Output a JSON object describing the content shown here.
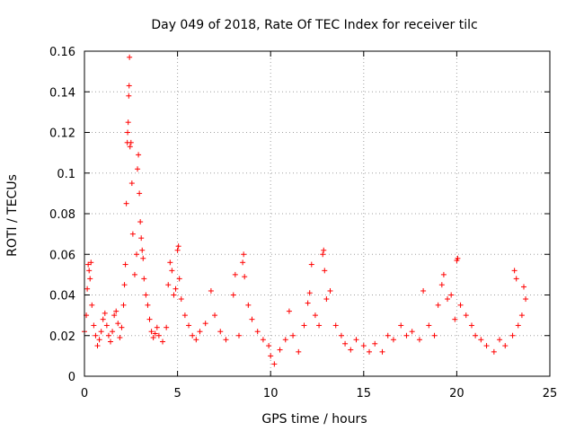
{
  "chart_data": {
    "type": "scatter",
    "title": "Day 049 of 2018, Rate Of TEC Index for receiver tilc",
    "xlabel": "GPS time / hours",
    "ylabel": "ROTI / TECUs",
    "xlim": [
      0,
      25
    ],
    "ylim": [
      0,
      0.16
    ],
    "xticks": [
      0,
      5,
      10,
      15,
      20,
      25
    ],
    "xtick_labels": [
      "0",
      "5",
      "10",
      "15",
      "20",
      "25"
    ],
    "yticks": [
      0,
      0.02,
      0.04,
      0.06,
      0.08,
      0.1,
      0.12,
      0.14,
      0.16
    ],
    "ytick_labels": [
      "0",
      "0.02",
      "0.04",
      "0.06",
      "0.08",
      "0.1",
      "0.12",
      "0.14",
      "0.16"
    ],
    "grid": true,
    "marker": "plus",
    "color": "#ff0000",
    "series": [
      {
        "name": "ROTI",
        "points": [
          [
            0.0,
            0.022
          ],
          [
            0.1,
            0.03
          ],
          [
            0.15,
            0.043
          ],
          [
            0.2,
            0.055
          ],
          [
            0.25,
            0.052
          ],
          [
            0.3,
            0.048
          ],
          [
            0.35,
            0.056
          ],
          [
            0.4,
            0.035
          ],
          [
            0.5,
            0.025
          ],
          [
            0.6,
            0.02
          ],
          [
            0.7,
            0.015
          ],
          [
            0.8,
            0.018
          ],
          [
            0.9,
            0.022
          ],
          [
            1.0,
            0.028
          ],
          [
            1.1,
            0.031
          ],
          [
            1.2,
            0.025
          ],
          [
            1.3,
            0.02
          ],
          [
            1.4,
            0.017
          ],
          [
            1.5,
            0.022
          ],
          [
            1.6,
            0.03
          ],
          [
            1.7,
            0.032
          ],
          [
            1.8,
            0.026
          ],
          [
            1.9,
            0.019
          ],
          [
            2.0,
            0.024
          ],
          [
            2.1,
            0.035
          ],
          [
            2.15,
            0.045
          ],
          [
            2.2,
            0.055
          ],
          [
            2.25,
            0.085
          ],
          [
            2.3,
            0.115
          ],
          [
            2.32,
            0.12
          ],
          [
            2.35,
            0.125
          ],
          [
            2.38,
            0.138
          ],
          [
            2.4,
            0.143
          ],
          [
            2.42,
            0.157
          ],
          [
            2.45,
            0.113
          ],
          [
            2.5,
            0.115
          ],
          [
            2.55,
            0.095
          ],
          [
            2.6,
            0.07
          ],
          [
            2.7,
            0.05
          ],
          [
            2.8,
            0.06
          ],
          [
            2.85,
            0.102
          ],
          [
            2.9,
            0.109
          ],
          [
            2.95,
            0.09
          ],
          [
            3.0,
            0.076
          ],
          [
            3.05,
            0.068
          ],
          [
            3.1,
            0.062
          ],
          [
            3.15,
            0.058
          ],
          [
            3.2,
            0.048
          ],
          [
            3.3,
            0.04
          ],
          [
            3.4,
            0.035
          ],
          [
            3.5,
            0.028
          ],
          [
            3.6,
            0.022
          ],
          [
            3.7,
            0.019
          ],
          [
            3.8,
            0.021
          ],
          [
            3.9,
            0.024
          ],
          [
            4.0,
            0.02
          ],
          [
            4.2,
            0.017
          ],
          [
            4.4,
            0.024
          ],
          [
            4.5,
            0.045
          ],
          [
            4.6,
            0.056
          ],
          [
            4.7,
            0.052
          ],
          [
            4.8,
            0.04
          ],
          [
            4.9,
            0.043
          ],
          [
            5.0,
            0.062
          ],
          [
            5.05,
            0.064
          ],
          [
            5.1,
            0.048
          ],
          [
            5.2,
            0.038
          ],
          [
            5.4,
            0.03
          ],
          [
            5.6,
            0.025
          ],
          [
            5.8,
            0.02
          ],
          [
            6.0,
            0.018
          ],
          [
            6.2,
            0.022
          ],
          [
            6.5,
            0.026
          ],
          [
            6.8,
            0.042
          ],
          [
            7.0,
            0.03
          ],
          [
            7.3,
            0.022
          ],
          [
            7.6,
            0.018
          ],
          [
            8.0,
            0.04
          ],
          [
            8.1,
            0.05
          ],
          [
            8.3,
            0.02
          ],
          [
            8.5,
            0.056
          ],
          [
            8.55,
            0.06
          ],
          [
            8.6,
            0.049
          ],
          [
            8.8,
            0.035
          ],
          [
            9.0,
            0.028
          ],
          [
            9.3,
            0.022
          ],
          [
            9.6,
            0.018
          ],
          [
            9.9,
            0.015
          ],
          [
            10.0,
            0.01
          ],
          [
            10.2,
            0.006
          ],
          [
            10.5,
            0.013
          ],
          [
            10.8,
            0.018
          ],
          [
            11.0,
            0.032
          ],
          [
            11.2,
            0.02
          ],
          [
            11.5,
            0.012
          ],
          [
            11.8,
            0.025
          ],
          [
            12.0,
            0.036
          ],
          [
            12.1,
            0.041
          ],
          [
            12.2,
            0.055
          ],
          [
            12.4,
            0.03
          ],
          [
            12.6,
            0.025
          ],
          [
            12.8,
            0.06
          ],
          [
            12.85,
            0.062
          ],
          [
            12.9,
            0.052
          ],
          [
            13.0,
            0.038
          ],
          [
            13.2,
            0.042
          ],
          [
            13.5,
            0.025
          ],
          [
            13.8,
            0.02
          ],
          [
            14.0,
            0.016
          ],
          [
            14.3,
            0.013
          ],
          [
            14.6,
            0.018
          ],
          [
            15.0,
            0.015
          ],
          [
            15.3,
            0.012
          ],
          [
            15.6,
            0.016
          ],
          [
            16.0,
            0.012
          ],
          [
            16.3,
            0.02
          ],
          [
            16.6,
            0.018
          ],
          [
            17.0,
            0.025
          ],
          [
            17.3,
            0.02
          ],
          [
            17.6,
            0.022
          ],
          [
            18.0,
            0.018
          ],
          [
            18.2,
            0.042
          ],
          [
            18.5,
            0.025
          ],
          [
            18.8,
            0.02
          ],
          [
            19.0,
            0.035
          ],
          [
            19.2,
            0.045
          ],
          [
            19.3,
            0.05
          ],
          [
            19.5,
            0.038
          ],
          [
            19.7,
            0.04
          ],
          [
            19.9,
            0.028
          ],
          [
            20.0,
            0.057
          ],
          [
            20.05,
            0.058
          ],
          [
            20.2,
            0.035
          ],
          [
            20.5,
            0.03
          ],
          [
            20.8,
            0.025
          ],
          [
            21.0,
            0.02
          ],
          [
            21.3,
            0.018
          ],
          [
            21.6,
            0.015
          ],
          [
            22.0,
            0.012
          ],
          [
            22.3,
            0.018
          ],
          [
            22.6,
            0.015
          ],
          [
            23.0,
            0.02
          ],
          [
            23.1,
            0.052
          ],
          [
            23.2,
            0.048
          ],
          [
            23.3,
            0.025
          ],
          [
            23.5,
            0.03
          ],
          [
            23.6,
            0.044
          ],
          [
            23.7,
            0.038
          ]
        ]
      }
    ]
  }
}
